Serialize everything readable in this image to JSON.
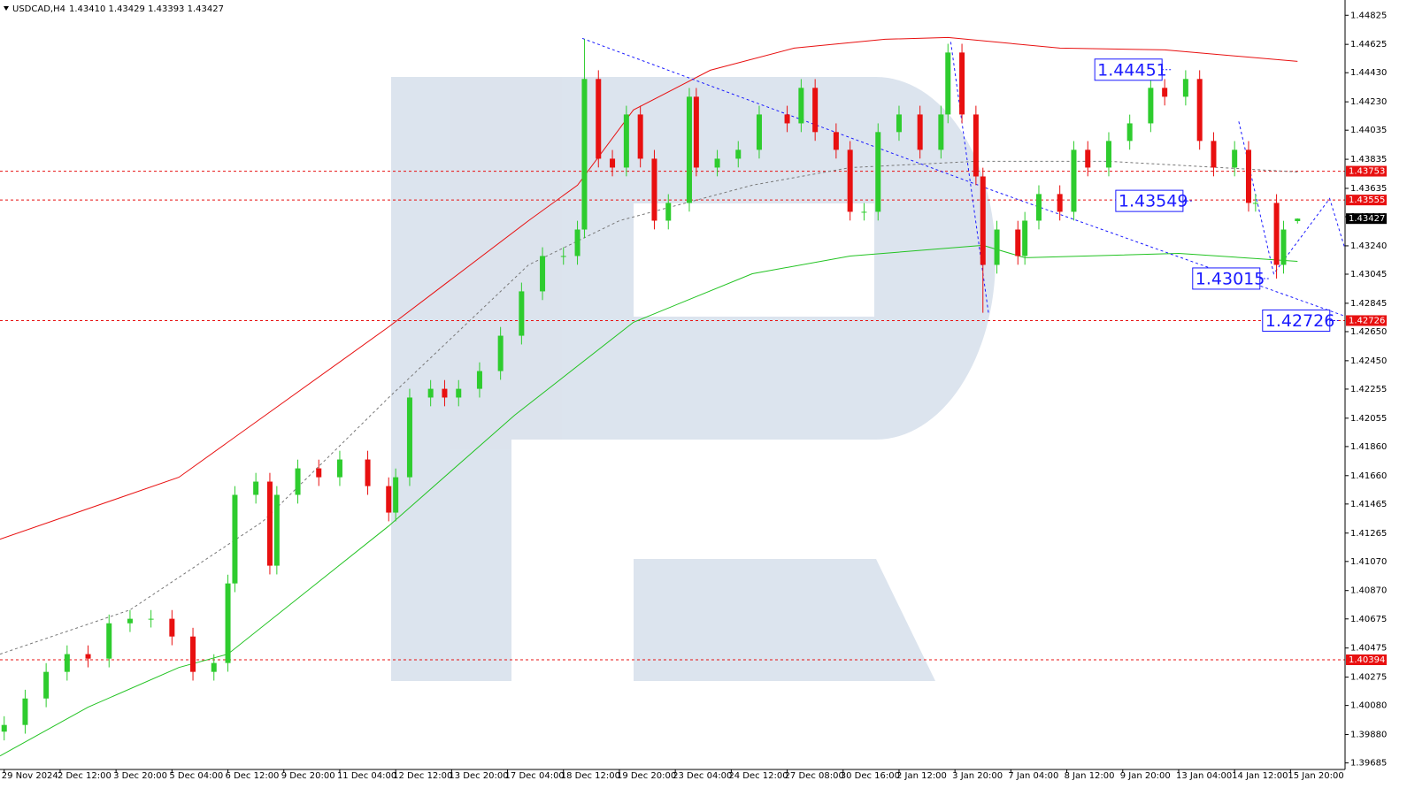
{
  "chart_data": {
    "type": "candlestick",
    "title": "USDCAD,H4",
    "quote": "1.43410 1.43429 1.43393 1.43427",
    "up_color": "#2ecc2e",
    "down_color": "#e81010",
    "xlim": [
      -0.6,
      191.8
    ],
    "ylim": [
      1.3964,
      1.4493
    ],
    "grid": false,
    "xticks": [
      {
        "value": 0,
        "label": "29 Nov 2024"
      },
      {
        "value": 8,
        "label": "2 Dec 12:00"
      },
      {
        "value": 16,
        "label": "3 Dec 20:00"
      },
      {
        "value": 24,
        "label": "5 Dec 04:00"
      },
      {
        "value": 32,
        "label": "6 Dec 12:00"
      },
      {
        "value": 40,
        "label": "9 Dec 20:00"
      },
      {
        "value": 48,
        "label": "11 Dec 04:00"
      },
      {
        "value": 56,
        "label": "12 Dec 12:00"
      },
      {
        "value": 64,
        "label": "13 Dec 20:00"
      },
      {
        "value": 72,
        "label": "17 Dec 04:00"
      },
      {
        "value": 80,
        "label": "18 Dec 12:00"
      },
      {
        "value": 88,
        "label": "19 Dec 20:00"
      },
      {
        "value": 96,
        "label": "23 Dec 04:00"
      },
      {
        "value": 104,
        "label": "24 Dec 12:00"
      },
      {
        "value": 112,
        "label": "27 Dec 08:00"
      },
      {
        "value": 120,
        "label": "30 Dec 16:00"
      },
      {
        "value": 128,
        "label": "2 Jan 12:00"
      },
      {
        "value": 136,
        "label": "3 Jan 20:00"
      },
      {
        "value": 144,
        "label": "7 Jan 04:00"
      },
      {
        "value": 152,
        "label": "8 Jan 12:00"
      },
      {
        "value": 160,
        "label": "9 Jan 20:00"
      },
      {
        "value": 168,
        "label": "13 Jan 04:00"
      },
      {
        "value": 176,
        "label": "14 Jan 12:00"
      },
      {
        "value": 184,
        "label": "15 Jan 20:00"
      }
    ],
    "yticks": [
      1.44825,
      1.44625,
      {
        "value": 1.4443,
        "label": "1.44430"
      },
      {
        "value": 1.4423,
        "label": "1.44230"
      },
      1.44035,
      1.43835,
      1.43635,
      {
        "value": 1.4344,
        "label": "1.43440"
      },
      {
        "value": 1.4324,
        "label": "1.43240"
      },
      1.43045,
      1.42845,
      {
        "value": 1.4265,
        "label": "1.42650"
      },
      {
        "value": 1.4245,
        "label": "1.42450"
      },
      1.42255,
      1.42055,
      {
        "value": 1.4186,
        "label": "1.41860"
      },
      {
        "value": 1.4166,
        "label": "1.41660"
      },
      1.41465,
      1.41265,
      {
        "value": 1.4107,
        "label": "1.41070"
      },
      {
        "value": 1.4087,
        "label": "1.40870"
      },
      1.40675,
      1.40475,
      1.40275,
      {
        "value": 1.4008,
        "label": "1.40080"
      },
      {
        "value": 1.3988,
        "label": "1.39880"
      },
      1.39685
    ],
    "x": [
      0,
      3,
      6,
      9,
      12,
      15,
      18,
      21,
      24,
      27,
      30,
      32,
      33,
      36,
      38,
      39,
      42,
      45,
      48,
      52,
      55,
      56,
      58,
      61,
      63,
      65,
      68,
      71,
      74,
      77,
      80,
      82,
      83,
      85,
      87,
      89,
      91,
      93,
      95,
      98,
      99,
      102,
      105,
      108,
      112,
      114,
      116,
      119,
      121,
      123,
      125,
      128,
      131,
      134,
      135,
      137,
      139,
      140,
      142,
      145,
      146,
      148,
      151,
      153,
      155,
      158,
      161,
      164,
      166,
      169,
      171,
      173,
      176,
      178,
      179,
      182,
      183,
      185
    ],
    "open": [
      1.399,
      1.39946,
      1.40128,
      1.40311,
      1.40433,
      1.40402,
      1.40645,
      1.40676,
      1.40676,
      1.40554,
      1.40311,
      1.40372,
      1.40919,
      1.41528,
      1.41619,
      1.41041,
      1.41528,
      1.4171,
      1.41649,
      1.41771,
      1.41588,
      1.41406,
      1.41649,
      1.42197,
      1.42257,
      1.42197,
      1.42257,
      1.42379,
      1.42622,
      1.42927,
      1.4317,
      1.4317,
      1.43352,
      1.44387,
      1.43839,
      1.43778,
      1.44143,
      1.43839,
      1.43413,
      1.43535,
      1.44265,
      1.43778,
      1.43839,
      1.439,
      1.44143,
      1.44082,
      1.44326,
      1.44022,
      1.439,
      1.43474,
      1.43474,
      1.44022,
      1.44143,
      1.439,
      1.44143,
      1.44569,
      1.44143,
      1.43717,
      1.43109,
      1.43352,
      1.4317,
      1.43413,
      1.43596,
      1.43474,
      1.439,
      1.43778,
      1.43961,
      1.44082,
      1.44326,
      1.44265,
      1.44387,
      1.43961,
      1.43778,
      1.439,
      1.43535,
      1.43535,
      1.43109,
      1.4341
    ],
    "high": [
      1.40006,
      1.40188,
      1.40371,
      1.40493,
      1.40493,
      1.40705,
      1.40736,
      1.40736,
      1.40736,
      1.40614,
      1.40432,
      1.40979,
      1.41588,
      1.41679,
      1.41679,
      1.41588,
      1.4177,
      1.4177,
      1.41831,
      1.41831,
      1.41648,
      1.41709,
      1.42257,
      1.42317,
      1.42317,
      1.42317,
      1.42439,
      1.42682,
      1.42987,
      1.4323,
      1.4323,
      1.43412,
      1.4466,
      1.44447,
      1.43899,
      1.44203,
      1.44203,
      1.43899,
      1.43595,
      1.44325,
      1.44325,
      1.43899,
      1.4396,
      1.44203,
      1.44203,
      1.44386,
      1.44386,
      1.44082,
      1.4396,
      1.43534,
      1.44082,
      1.44203,
      1.44203,
      1.44203,
      1.44629,
      1.44629,
      1.44203,
      1.43777,
      1.43412,
      1.43412,
      1.43473,
      1.43656,
      1.43656,
      1.4396,
      1.4396,
      1.44021,
      1.44142,
      1.44451,
      1.44386,
      1.44447,
      1.44447,
      1.44021,
      1.4396,
      1.4396,
      1.43595,
      1.43595,
      1.43412,
      1.43429
    ],
    "low": [
      1.3984,
      1.39886,
      1.40068,
      1.40251,
      1.40342,
      1.40342,
      1.40585,
      1.40616,
      1.40494,
      1.40251,
      1.40251,
      1.40312,
      1.40859,
      1.41468,
      1.40981,
      1.40981,
      1.41468,
      1.41589,
      1.41589,
      1.41528,
      1.41346,
      1.41346,
      1.41589,
      1.42137,
      1.42137,
      1.42137,
      1.42197,
      1.42319,
      1.42562,
      1.42867,
      1.4311,
      1.4311,
      1.43292,
      1.43779,
      1.43718,
      1.43718,
      1.43779,
      1.43353,
      1.43353,
      1.43475,
      1.43718,
      1.43718,
      1.43779,
      1.4384,
      1.44022,
      1.44022,
      1.43962,
      1.4384,
      1.43414,
      1.43414,
      1.43414,
      1.43962,
      1.4384,
      1.4384,
      1.44083,
      1.44083,
      1.43657,
      1.4278,
      1.43049,
      1.4311,
      1.4311,
      1.43353,
      1.43414,
      1.43414,
      1.43718,
      1.43718,
      1.43901,
      1.44022,
      1.44205,
      1.44205,
      1.43901,
      1.43718,
      1.43718,
      1.43475,
      1.43475,
      1.43015,
      1.43049,
      1.43393
    ],
    "close": [
      1.39946,
      1.40128,
      1.40311,
      1.40433,
      1.40402,
      1.40645,
      1.40676,
      1.40676,
      1.40554,
      1.40311,
      1.40372,
      1.40919,
      1.41528,
      1.41619,
      1.41041,
      1.41528,
      1.4171,
      1.41649,
      1.41771,
      1.41588,
      1.41406,
      1.41649,
      1.42197,
      1.42257,
      1.42197,
      1.42257,
      1.42379,
      1.42622,
      1.42927,
      1.4317,
      1.4317,
      1.43352,
      1.44387,
      1.43839,
      1.43778,
      1.44143,
      1.43839,
      1.43413,
      1.43535,
      1.44265,
      1.43778,
      1.43839,
      1.439,
      1.44143,
      1.44082,
      1.44326,
      1.44022,
      1.439,
      1.43474,
      1.43474,
      1.44022,
      1.44143,
      1.439,
      1.44143,
      1.44569,
      1.44143,
      1.43717,
      1.43109,
      1.43352,
      1.4317,
      1.43413,
      1.43596,
      1.43474,
      1.439,
      1.43778,
      1.43961,
      1.44082,
      1.44326,
      1.44265,
      1.44387,
      1.43961,
      1.43778,
      1.439,
      1.43535,
      1.43535,
      1.43109,
      1.43352,
      1.43427
    ],
    "lines": [
      {
        "color": "#e81010",
        "dashed": false,
        "x": [
          -0.6,
          25,
          55,
          75,
          82,
          90,
          101,
          113,
          126,
          135,
          151,
          166,
          185
        ],
        "values": [
          1.41223,
          1.41649,
          1.42683,
          1.43413,
          1.43657,
          1.44174,
          1.44447,
          1.44599,
          1.4466,
          1.44672,
          1.44599,
          1.44587,
          1.44508
        ]
      },
      {
        "color": "#22c322",
        "dashed": false,
        "x": [
          -0.6,
          12,
          25,
          32,
          55,
          73,
          90,
          107,
          121,
          140,
          146,
          168,
          185
        ],
        "values": [
          1.39733,
          1.40068,
          1.40341,
          1.40433,
          1.41314,
          1.42075,
          1.42714,
          1.43048,
          1.4317,
          1.43243,
          1.43158,
          1.43188,
          1.43133
        ]
      },
      {
        "color": "#777777",
        "dashed": true,
        "x": [
          -0.6,
          18,
          37,
          55,
          75,
          88,
          107,
          121,
          139,
          158,
          185
        ],
        "values": [
          1.40433,
          1.40737,
          1.41345,
          1.42197,
          1.43109,
          1.43413,
          1.43657,
          1.43778,
          1.43821,
          1.43821,
          1.43748
        ]
      },
      {
        "color": "#1a1aff",
        "dashed": true,
        "x": [
          82.7,
          141.1,
          191.8
        ],
        "values": [
          1.44666,
          1.43626,
          1.42756
        ]
      },
      {
        "color": "#1a1aff",
        "dashed": true,
        "x": [
          135.4,
          140.8
        ],
        "values": [
          1.44642,
          1.42775
        ]
      },
      {
        "color": "#1a1aff",
        "dashed": true,
        "x": [
          176.6,
          181.6,
          189.6,
          191.8
        ],
        "values": [
          1.44095,
          1.43048,
          1.43565,
          1.43219
        ]
      }
    ],
    "levels": [
      {
        "value": 1.43753,
        "color": "#e81010"
      },
      {
        "value": 1.43555,
        "color": "#e81010"
      },
      {
        "value": 1.42726,
        "color": "#e81010"
      },
      {
        "value": 1.40394,
        "color": "#e81010"
      }
    ],
    "last": 1.43427,
    "annotations": [
      {
        "x": 156,
        "value": 1.44451
      },
      {
        "x": 159,
        "value": 1.43549
      },
      {
        "x": 170,
        "value": 1.43015
      },
      {
        "x": 180,
        "value": 1.42726
      }
    ],
    "annotation_color": "#1a1aff"
  }
}
